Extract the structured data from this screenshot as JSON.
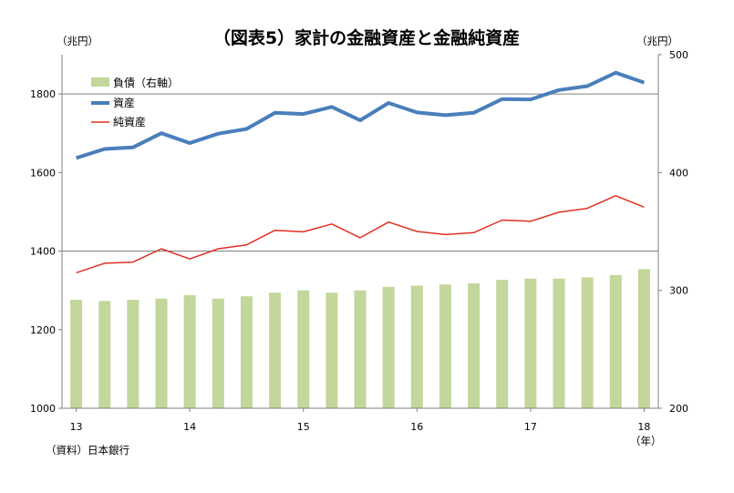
{
  "chart_data": {
    "type": "bar+line",
    "title": "（図表5）家計の金融資産と金融純資産",
    "left_unit": "（兆円）",
    "right_unit": "（兆円）",
    "x_unit": "（年）",
    "source": "（資料）日本銀行",
    "x_tick_labels": [
      {
        "label": "13",
        "index": 0
      },
      {
        "label": "14",
        "index": 4
      },
      {
        "label": "15",
        "index": 8
      },
      {
        "label": "16",
        "index": 12
      },
      {
        "label": "17",
        "index": 16
      },
      {
        "label": "18",
        "index": 20
      }
    ],
    "left_axis": {
      "min": 1000,
      "max": 1900,
      "ticks": [
        1000,
        1200,
        1400,
        1600,
        1800
      ]
    },
    "right_axis": {
      "min": 200,
      "max": 500,
      "ticks": [
        200,
        300,
        400,
        500
      ]
    },
    "gridlines": [
      1400,
      1800
    ],
    "legend": {
      "placement": "top-left"
    },
    "series": [
      {
        "name": "負債（右軸）",
        "type": "bar",
        "axis": "right",
        "color": "#c3d69b",
        "values": [
          292,
          291,
          292,
          293,
          296,
          293,
          295,
          298,
          300,
          298,
          300,
          303,
          304,
          305,
          306,
          309,
          310,
          310,
          311,
          313,
          318
        ]
      },
      {
        "name": "資産",
        "type": "line",
        "axis": "left",
        "color": "#4a7ebb",
        "values": [
          1637,
          1660,
          1664,
          1700,
          1675,
          1699,
          1711,
          1752,
          1749,
          1767,
          1733,
          1777,
          1753,
          1746,
          1752,
          1787,
          1786,
          1810,
          1820,
          1854,
          1829
        ]
      },
      {
        "name": "純資産",
        "type": "line",
        "axis": "left",
        "color": "#e03020",
        "values": [
          1345,
          1369,
          1372,
          1406,
          1380,
          1406,
          1416,
          1453,
          1449,
          1469,
          1434,
          1474,
          1450,
          1442,
          1447,
          1479,
          1476,
          1499,
          1509,
          1541,
          1512
        ]
      }
    ]
  }
}
